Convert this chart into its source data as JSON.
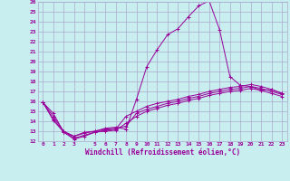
{
  "background_color": "#c8eef0",
  "grid_color": "#aaaacc",
  "line_color": "#990099",
  "marker": "+",
  "xlabel": "Windchill (Refroidissement éolien,°C)",
  "xlabel_color": "#990099",
  "ylabel_color": "#990099",
  "title": "",
  "xlim": [
    -0.5,
    23.5
  ],
  "ylim": [
    12,
    26
  ],
  "yticks": [
    12,
    13,
    14,
    15,
    16,
    17,
    18,
    19,
    20,
    21,
    22,
    23,
    24,
    25,
    26
  ],
  "xticks": [
    0,
    1,
    2,
    3,
    4,
    5,
    6,
    7,
    8,
    9,
    10,
    11,
    12,
    13,
    14,
    15,
    16,
    17,
    18,
    19,
    20,
    21,
    22,
    23
  ],
  "xticklabels": [
    "0",
    "1",
    "2",
    "3",
    "",
    "5",
    "6",
    "7",
    "8",
    "9",
    "10",
    "11",
    "12",
    "13",
    "14",
    "15",
    "16",
    "17",
    "18",
    "19",
    "20",
    "21",
    "22",
    "23"
  ],
  "lines": [
    {
      "x": [
        0,
        1,
        2,
        3,
        4,
        5,
        6,
        7,
        8,
        9,
        10,
        11,
        12,
        13,
        14,
        15,
        16,
        17,
        18,
        19,
        20,
        21,
        22,
        23
      ],
      "y": [
        15.9,
        14.8,
        12.9,
        12.5,
        12.9,
        13.0,
        13.3,
        13.4,
        13.2,
        16.2,
        19.5,
        21.2,
        22.7,
        23.3,
        24.5,
        25.6,
        26.1,
        23.2,
        18.5,
        17.6,
        17.5,
        17.1,
        17.2,
        16.8
      ]
    },
    {
      "x": [
        0,
        1,
        2,
        3,
        4,
        5,
        6,
        7,
        8,
        9,
        10,
        11,
        12,
        13,
        14,
        15,
        16,
        17,
        18,
        19,
        20,
        21,
        22,
        23
      ],
      "y": [
        15.9,
        14.1,
        12.9,
        12.2,
        12.5,
        12.9,
        13.1,
        13.2,
        14.5,
        15.0,
        15.5,
        15.8,
        16.0,
        16.2,
        16.5,
        16.7,
        17.0,
        17.2,
        17.4,
        17.5,
        17.7,
        17.5,
        17.2,
        16.8
      ]
    },
    {
      "x": [
        0,
        1,
        2,
        3,
        4,
        5,
        6,
        7,
        8,
        9,
        10,
        11,
        12,
        13,
        14,
        15,
        16,
        17,
        18,
        19,
        20,
        21,
        22,
        23
      ],
      "y": [
        15.9,
        14.5,
        13.0,
        12.5,
        12.8,
        13.0,
        13.2,
        13.3,
        13.5,
        14.8,
        15.2,
        15.5,
        15.8,
        16.0,
        16.3,
        16.5,
        16.8,
        17.0,
        17.2,
        17.3,
        17.5,
        17.3,
        17.0,
        16.7
      ]
    },
    {
      "x": [
        0,
        1,
        2,
        3,
        4,
        5,
        6,
        7,
        8,
        9,
        10,
        11,
        12,
        13,
        14,
        15,
        16,
        17,
        18,
        19,
        20,
        21,
        22,
        23
      ],
      "y": [
        15.9,
        14.2,
        13.0,
        12.3,
        12.6,
        12.9,
        13.0,
        13.1,
        13.8,
        14.5,
        15.0,
        15.3,
        15.6,
        15.8,
        16.1,
        16.3,
        16.6,
        16.8,
        17.0,
        17.1,
        17.3,
        17.1,
        16.8,
        16.5
      ]
    }
  ]
}
